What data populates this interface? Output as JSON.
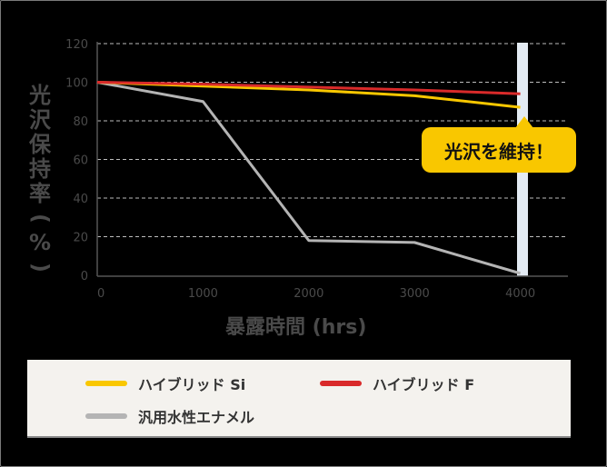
{
  "chart_data": {
    "type": "line",
    "title": "",
    "xlabel": "暴露時間 (hrs)",
    "ylabel": "光沢保持率 (%)",
    "x": [
      0,
      1000,
      2000,
      3000,
      4000
    ],
    "xticks": [
      "0",
      "1000",
      "2000",
      "3000",
      "4000"
    ],
    "yticks": [
      "0",
      "20",
      "40",
      "60",
      "80",
      "100",
      "120"
    ],
    "xlim": [
      0,
      4450
    ],
    "ylim": [
      0,
      120
    ],
    "grid": "horizontal dashed",
    "legend_position": "bottom",
    "series": [
      {
        "name": "ハイブリッド Si",
        "color": "#f9c700",
        "values": [
          100,
          98,
          96,
          93,
          87
        ]
      },
      {
        "name": "ハイブリッド F",
        "color": "#d92a2a",
        "values": [
          100,
          99,
          97.5,
          96,
          94
        ]
      },
      {
        "name": "汎用水性エナメル",
        "color": "#b4b4b4",
        "values": [
          100,
          90,
          18,
          17,
          1
        ]
      }
    ],
    "highlight_x": 4000,
    "annotation": "光沢を維持！"
  },
  "labels": {
    "ylabel_chars": [
      "光",
      "沢",
      "保",
      "持",
      "率",
      "(",
      "%",
      ")"
    ],
    "xlabel": "暴露時間 (hrs)",
    "callout": "光沢を維持！"
  },
  "legend": [
    {
      "label": "ハイブリッド Si",
      "color": "#f9c700"
    },
    {
      "label": "ハイブリッド F",
      "color": "#d92a2a"
    },
    {
      "label": "汎用水性エナメル",
      "color": "#b4b4b4"
    }
  ]
}
